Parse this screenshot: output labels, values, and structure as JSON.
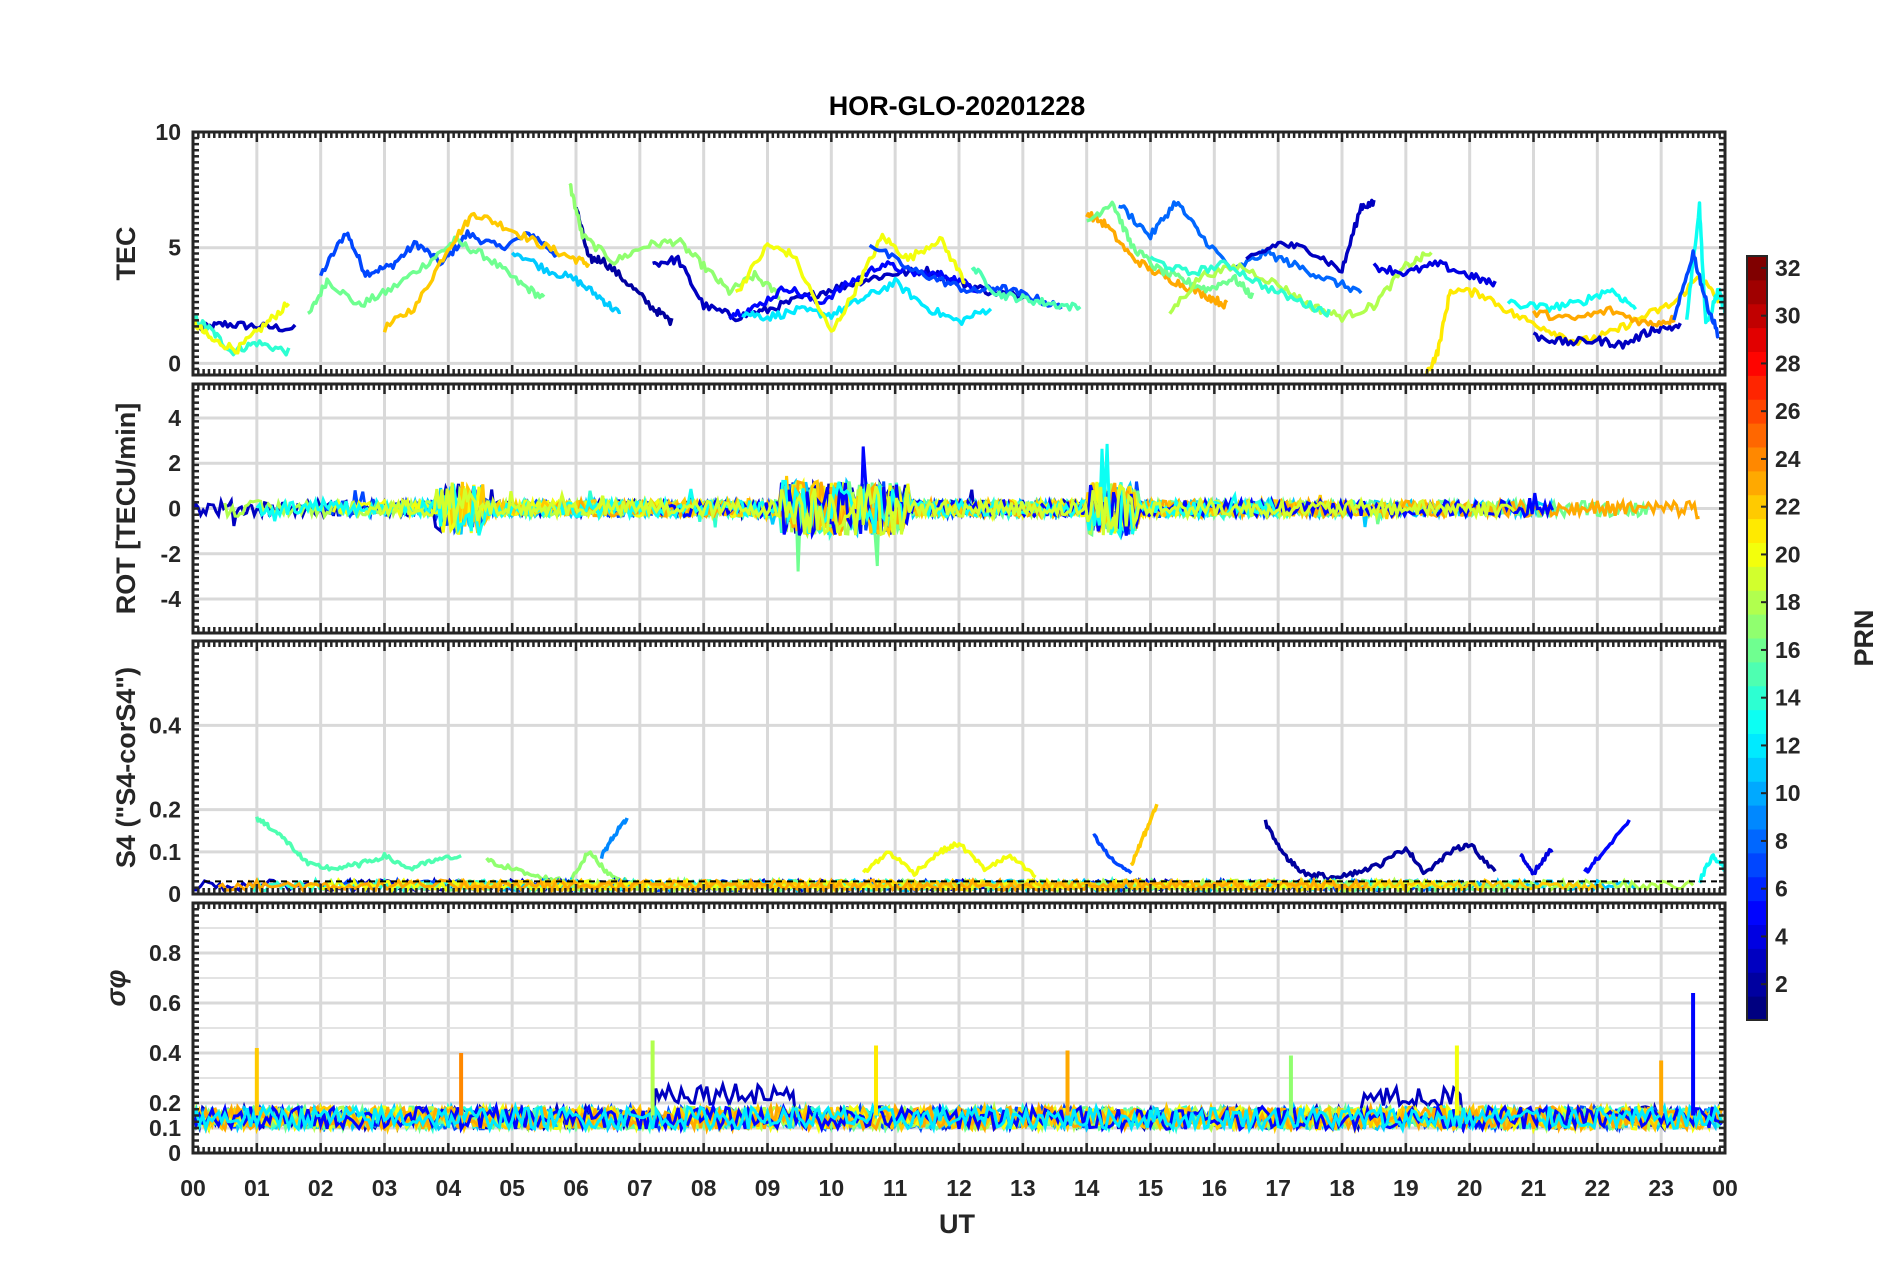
{
  "chart_data": {
    "type": "line",
    "title": "HOR-GLO-20201228",
    "xlabel": "UT",
    "x_ticks": [
      "00",
      "01",
      "02",
      "03",
      "04",
      "05",
      "06",
      "07",
      "08",
      "09",
      "10",
      "11",
      "12",
      "13",
      "14",
      "15",
      "16",
      "17",
      "18",
      "19",
      "20",
      "21",
      "22",
      "23",
      "00"
    ],
    "xlim": [
      0,
      24
    ],
    "colorbar": {
      "label": "PRN",
      "range": [
        1,
        32
      ],
      "ticks": [
        "2",
        "4",
        "6",
        "8",
        "10",
        "12",
        "14",
        "16",
        "18",
        "20",
        "22",
        "24",
        "26",
        "28",
        "30",
        "32"
      ],
      "colormap": "jet"
    },
    "panels": [
      {
        "name": "tec",
        "ylabel": "TEC",
        "ylim": [
          -0.5,
          10
        ],
        "yticks": [
          "0",
          "5",
          "10"
        ],
        "series": [
          {
            "prn": 3,
            "t": [
              0.1,
              0.5,
              1.0,
              1.6
            ],
            "v": [
              1.5,
              1.7,
              1.6,
              1.5
            ]
          },
          {
            "prn": 7,
            "t": [
              2.0,
              2.4,
              2.7,
              3.1,
              3.5,
              3.9,
              4.3,
              4.8,
              5.3,
              5.7
            ],
            "v": [
              3.8,
              5.7,
              3.9,
              4.2,
              5.2,
              4.3,
              5.6,
              5.0,
              5.6,
              4.7
            ]
          },
          {
            "prn": 16,
            "t": [
              1.8,
              2.1,
              2.6,
              3.1,
              3.7,
              4.1,
              4.6,
              5.1,
              5.5
            ],
            "v": [
              2.0,
              3.6,
              2.5,
              3.2,
              4.4,
              5.3,
              4.6,
              3.5,
              2.8
            ]
          },
          {
            "prn": 14,
            "t": [
              0.0,
              0.3,
              0.6,
              1.0,
              1.5
            ],
            "v": [
              2.0,
              1.4,
              0.5,
              0.9,
              0.5
            ]
          },
          {
            "prn": 20,
            "t": [
              0.0,
              0.3,
              0.7,
              1.1,
              1.5
            ],
            "v": [
              1.8,
              1.0,
              0.6,
              1.6,
              2.6
            ]
          },
          {
            "prn": 22,
            "t": [
              3.0,
              3.5,
              4.0,
              4.4,
              4.9,
              5.4,
              5.9,
              6.2
            ],
            "v": [
              1.5,
              2.5,
              5.0,
              6.5,
              5.9,
              5.2,
              4.6,
              4.3
            ]
          },
          {
            "prn": 2,
            "t": [
              6.0,
              6.2,
              6.4,
              6.8,
              7.2,
              7.5
            ],
            "v": [
              6.8,
              4.5,
              4.5,
              3.5,
              2.4,
              1.8
            ]
          },
          {
            "prn": 11,
            "t": [
              5.0,
              5.5,
              6.0,
              6.4,
              6.7
            ],
            "v": [
              4.9,
              4.1,
              3.6,
              2.8,
              2.1
            ]
          },
          {
            "prn": 17,
            "t": [
              5.9,
              6.1,
              6.6,
              7.1,
              7.6,
              8.0,
              8.4,
              8.8,
              9.2
            ],
            "v": [
              7.8,
              5.5,
              4.4,
              5.1,
              5.3,
              4.2,
              3.1,
              3.8,
              2.9
            ]
          },
          {
            "prn": 3,
            "t": [
              7.2,
              7.6,
              8.0,
              8.5,
              9.0,
              9.5,
              10.0,
              10.5,
              11.0,
              11.5,
              12.0,
              12.5,
              13.0
            ],
            "v": [
              4.3,
              4.5,
              2.5,
              2.0,
              2.3,
              2.8,
              3.2,
              3.6,
              3.9,
              4.0,
              3.5,
              3.1,
              2.9
            ]
          },
          {
            "prn": 5,
            "t": [
              8.4,
              8.8,
              9.3,
              9.8,
              10.3,
              10.8,
              11.3,
              11.8,
              12.3
            ],
            "v": [
              2.1,
              2.4,
              3.3,
              2.6,
              3.5,
              4.3,
              3.9,
              3.8,
              3.2
            ]
          },
          {
            "prn": 12,
            "t": [
              8.6,
              9.0,
              9.5,
              10.0,
              10.5,
              11.0,
              11.5,
              12.0,
              12.5
            ],
            "v": [
              2.2,
              2.0,
              2.3,
              2.1,
              2.8,
              3.5,
              2.4,
              1.8,
              2.4
            ]
          },
          {
            "prn": 20,
            "t": [
              8.5,
              9.0,
              9.4,
              10.0,
              10.4,
              10.8,
              11.2,
              11.7,
              12.1
            ],
            "v": [
              3.0,
              5.1,
              4.7,
              1.3,
              3.3,
              5.5,
              4.5,
              5.4,
              3.5
            ]
          },
          {
            "prn": 7,
            "t": [
              10.6,
              11.2,
              11.7,
              12.2,
              12.6,
              13.1,
              13.6
            ],
            "v": [
              5.2,
              4.1,
              3.6,
              3.1,
              3.3,
              2.9,
              2.4
            ]
          },
          {
            "prn": 15,
            "t": [
              12.2,
              12.6,
              13.0,
              13.4,
              13.9
            ],
            "v": [
              4.2,
              3.0,
              2.8,
              2.6,
              2.4
            ]
          },
          {
            "prn": 23,
            "t": [
              14.0,
              14.3,
              14.7,
              15.1,
              15.5,
              15.9,
              16.2
            ],
            "v": [
              6.5,
              6.0,
              4.6,
              3.9,
              3.4,
              2.9,
              2.5
            ]
          },
          {
            "prn": 16,
            "t": [
              14.0,
              14.4,
              14.7,
              15.1,
              15.5,
              15.9,
              16.3,
              16.6
            ],
            "v": [
              6.1,
              7.0,
              5.1,
              4.1,
              3.6,
              3.2,
              3.7,
              2.9
            ]
          },
          {
            "prn": 8,
            "t": [
              14.5,
              15.0,
              15.4,
              15.8,
              16.3,
              16.8,
              17.3,
              17.8,
              18.3
            ],
            "v": [
              6.9,
              5.5,
              7.0,
              5.5,
              4.0,
              4.8,
              4.2,
              3.6,
              3.1
            ]
          },
          {
            "prn": 3,
            "t": [
              16.5,
              17.0,
              17.5,
              18.0,
              18.3,
              18.5
            ],
            "v": [
              4.4,
              5.2,
              4.9,
              4.0,
              6.8,
              6.9
            ]
          },
          {
            "prn": 18,
            "t": [
              15.3,
              15.8,
              16.4,
              17.0,
              17.5,
              18.0,
              18.5,
              19.0,
              19.4
            ],
            "v": [
              2.2,
              3.8,
              4.2,
              3.4,
              2.5,
              2.0,
              2.5,
              4.2,
              4.8
            ]
          },
          {
            "prn": 14,
            "t": [
              15.0,
              15.6,
              16.2,
              16.8,
              17.4,
              17.8
            ],
            "v": [
              4.5,
              3.9,
              4.3,
              3.3,
              2.6,
              2.2
            ]
          },
          {
            "prn": 4,
            "t": [
              18.5,
              19.0,
              19.5,
              20.0,
              20.4
            ],
            "v": [
              4.2,
              3.9,
              4.3,
              3.8,
              3.4
            ]
          },
          {
            "prn": 21,
            "t": [
              19.3,
              19.5,
              19.7,
              20.2,
              20.7,
              21.2,
              21.7,
              22.2,
              22.7,
              23.2,
              23.6,
              23.9
            ],
            "v": [
              -0.6,
              0.5,
              3.2,
              3.0,
              2.1,
              1.5,
              0.9,
              1.3,
              2.0,
              2.6,
              3.8,
              2.7
            ]
          },
          {
            "prn": 13,
            "t": [
              20.6,
              21.2,
              21.7,
              22.2,
              22.6
            ],
            "v": [
              2.6,
              2.4,
              2.6,
              3.2,
              2.4
            ]
          },
          {
            "prn": 3,
            "t": [
              21.0,
              21.5,
              22.0,
              22.4,
              22.9,
              23.3
            ],
            "v": [
              1.2,
              0.9,
              1.0,
              0.8,
              1.5,
              1.6
            ]
          },
          {
            "prn": 23,
            "t": [
              21.0,
              21.6,
              22.2,
              22.8,
              23.2
            ],
            "v": [
              2.2,
              1.9,
              2.3,
              1.7,
              1.9
            ]
          },
          {
            "prn": 13,
            "t": [
              23.4,
              23.6,
              23.7,
              23.9,
              24.0
            ],
            "v": [
              2.0,
              6.8,
              1.6,
              3.2,
              2.2
            ]
          },
          {
            "prn": 7,
            "t": [
              23.2,
              23.5,
              23.7,
              23.9
            ],
            "v": [
              1.8,
              4.8,
              2.7,
              1.2
            ]
          }
        ]
      },
      {
        "name": "rot",
        "ylabel": "ROT [TECU/min]",
        "ylim": [
          -5.5,
          5.5
        ],
        "yticks": [
          "-4",
          "-2",
          "0",
          "2",
          "4"
        ]
      },
      {
        "name": "s4",
        "ylabel": "S4 (\"S4-corS4\")",
        "ylim": [
          0,
          0.6
        ],
        "yticks": [
          "0",
          "0.1",
          "0.2",
          "0.4"
        ],
        "series": [
          {
            "prn": 15,
            "t": [
              1.0,
              1.2,
              1.5,
              1.8,
              2.2,
              2.6,
              3.0,
              3.4,
              3.8,
              4.2
            ],
            "v": [
              0.18,
              0.16,
              0.12,
              0.07,
              0.06,
              0.07,
              0.09,
              0.06,
              0.08,
              0.09
            ]
          },
          {
            "prn": 17,
            "t": [
              4.6,
              5.0,
              5.4,
              5.9,
              6.2,
              6.5,
              6.9
            ],
            "v": [
              0.08,
              0.06,
              0.04,
              0.03,
              0.1,
              0.05,
              0.02
            ]
          },
          {
            "prn": 9,
            "t": [
              6.4,
              6.6,
              6.8
            ],
            "v": [
              0.09,
              0.14,
              0.18
            ]
          },
          {
            "prn": 20,
            "t": [
              10.5,
              10.9,
              11.3,
              11.7,
              12.0,
              12.4,
              12.8,
              13.2
            ],
            "v": [
              0.05,
              0.1,
              0.05,
              0.1,
              0.12,
              0.06,
              0.09,
              0.04
            ]
          },
          {
            "prn": 7,
            "t": [
              14.1,
              14.4,
              14.7
            ],
            "v": [
              0.14,
              0.08,
              0.05
            ]
          },
          {
            "prn": 22,
            "t": [
              14.7,
              14.9,
              15.1
            ],
            "v": [
              0.07,
              0.14,
              0.21
            ]
          },
          {
            "prn": 2,
            "t": [
              16.8,
              17.1,
              17.4,
              17.8,
              18.2,
              18.6,
              19.0,
              19.3,
              19.7,
              20.0,
              20.4
            ],
            "v": [
              0.17,
              0.09,
              0.05,
              0.04,
              0.05,
              0.07,
              0.11,
              0.05,
              0.1,
              0.12,
              0.05
            ]
          },
          {
            "prn": 4,
            "t": [
              20.8,
              21.0,
              21.3
            ],
            "v": [
              0.09,
              0.05,
              0.11
            ]
          },
          {
            "prn": 5,
            "t": [
              21.8,
              22.1,
              22.5
            ],
            "v": [
              0.05,
              0.1,
              0.17
            ]
          },
          {
            "prn": 13,
            "t": [
              23.6,
              23.8,
              24.0
            ],
            "v": [
              0.03,
              0.09,
              0.06
            ]
          }
        ]
      },
      {
        "name": "sigma",
        "ylabel": "σφ",
        "ylim": [
          0,
          1.0
        ],
        "yticks": [
          "0",
          "0.1",
          "0.2",
          "0.4",
          "0.6",
          "0.8"
        ],
        "spikes": [
          {
            "prn": 22,
            "t": 1.0,
            "v": 0.42
          },
          {
            "prn": 24,
            "t": 4.2,
            "v": 0.4
          },
          {
            "prn": 18,
            "t": 7.2,
            "v": 0.45
          },
          {
            "prn": 21,
            "t": 10.7,
            "v": 0.43
          },
          {
            "prn": 23,
            "t": 13.7,
            "v": 0.41
          },
          {
            "prn": 17,
            "t": 17.2,
            "v": 0.39
          },
          {
            "prn": 20,
            "t": 19.8,
            "v": 0.43
          },
          {
            "prn": 23,
            "t": 23.0,
            "v": 0.37
          },
          {
            "prn": 5,
            "t": 23.5,
            "v": 0.64
          }
        ]
      }
    ]
  }
}
